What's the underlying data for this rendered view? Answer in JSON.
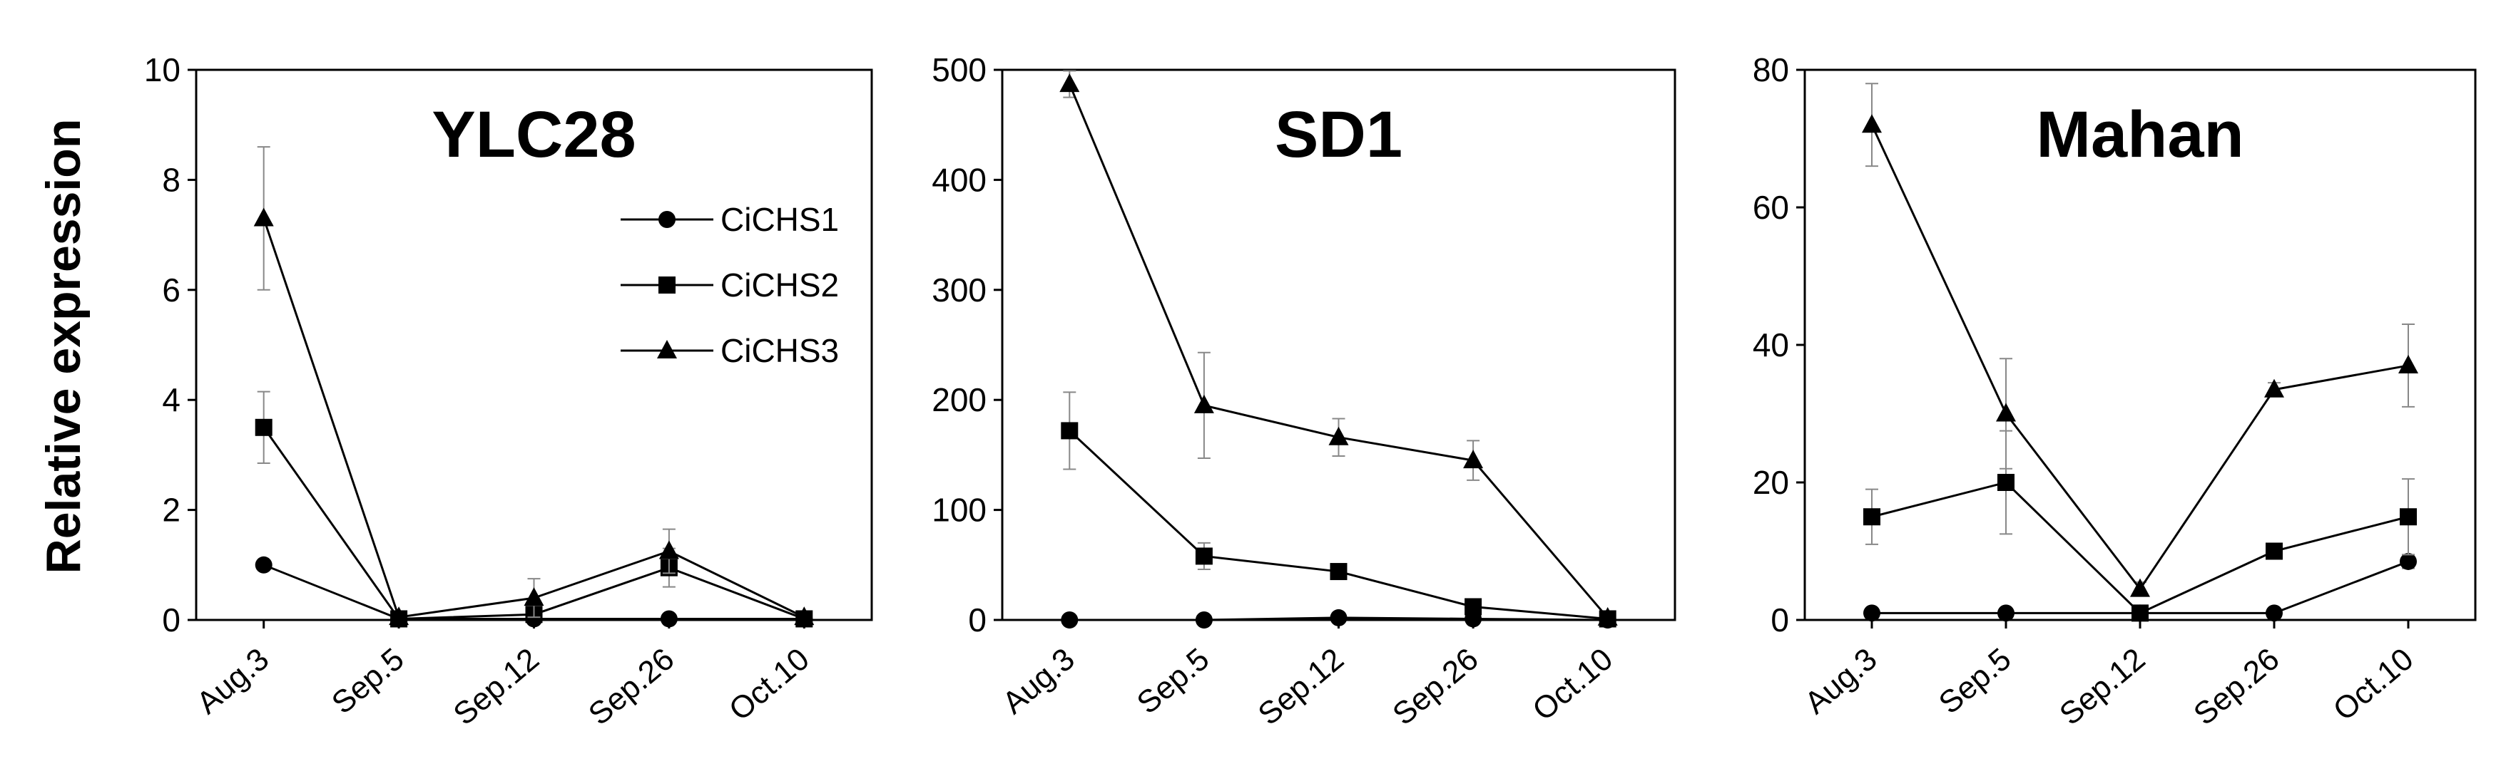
{
  "figure": {
    "ylabel": "Relative expression"
  },
  "chart_data": [
    {
      "type": "line",
      "title": "YLC28",
      "xlabel": "",
      "ylabel": "Relative expression",
      "categories": [
        "Aug.3",
        "Sep.5",
        "Sep.12",
        "Sep.26",
        "Oct.10"
      ],
      "ylim": [
        0,
        10
      ],
      "yticks": [
        0,
        2,
        4,
        6,
        8,
        10
      ],
      "grid": false,
      "legend": "top-right",
      "series": [
        {
          "name": "CiCHS1",
          "marker": "circle",
          "values": [
            1.0,
            0.02,
            0.02,
            0.02,
            0.02
          ],
          "errors": [
            0,
            0,
            0,
            0,
            0
          ]
        },
        {
          "name": "CiCHS2",
          "marker": "square",
          "values": [
            3.5,
            0.02,
            0.1,
            0.95,
            0.02
          ],
          "errors": [
            0.65,
            0,
            0.1,
            0.35,
            0
          ]
        },
        {
          "name": "CiCHS3",
          "marker": "triangle",
          "values": [
            7.3,
            0.05,
            0.4,
            1.25,
            0.05
          ],
          "errors": [
            1.3,
            0,
            0.35,
            0.4,
            0
          ]
        }
      ]
    },
    {
      "type": "line",
      "title": "SD1",
      "xlabel": "",
      "ylabel": "",
      "categories": [
        "Aug.3",
        "Sep.5",
        "Sep.12",
        "Sep.26",
        "Oct.10"
      ],
      "ylim": [
        0,
        500
      ],
      "yticks": [
        0,
        100,
        200,
        300,
        400,
        500
      ],
      "grid": false,
      "series": [
        {
          "name": "CiCHS1",
          "marker": "circle",
          "values": [
            0,
            0,
            2,
            1,
            0
          ],
          "errors": [
            0,
            0,
            0,
            0,
            0
          ]
        },
        {
          "name": "CiCHS2",
          "marker": "square",
          "values": [
            172,
            58,
            44,
            12,
            1
          ],
          "errors": [
            35,
            12,
            5,
            3,
            0
          ]
        },
        {
          "name": "CiCHS3",
          "marker": "triangle",
          "values": [
            487,
            195,
            166,
            145,
            2
          ],
          "errors": [
            12,
            48,
            17,
            18,
            0
          ]
        }
      ]
    },
    {
      "type": "line",
      "title": "Mahan",
      "xlabel": "",
      "ylabel": "",
      "categories": [
        "Aug.3",
        "Sep.5",
        "Sep.12",
        "Sep.26",
        "Oct.10"
      ],
      "ylim": [
        0,
        80
      ],
      "yticks": [
        0,
        20,
        40,
        60,
        80
      ],
      "grid": false,
      "series": [
        {
          "name": "CiCHS1",
          "marker": "circle",
          "values": [
            1,
            1,
            1,
            1,
            8.5
          ],
          "errors": [
            0,
            0,
            0,
            0,
            1
          ]
        },
        {
          "name": "CiCHS2",
          "marker": "square",
          "values": [
            15,
            20,
            1,
            10,
            15
          ],
          "errors": [
            4,
            7.5,
            0.5,
            1,
            5.5
          ]
        },
        {
          "name": "CiCHS3",
          "marker": "triangle",
          "values": [
            72,
            30,
            4.5,
            33.5,
            37
          ],
          "errors": [
            6,
            8,
            1,
            1,
            6
          ]
        }
      ]
    }
  ]
}
